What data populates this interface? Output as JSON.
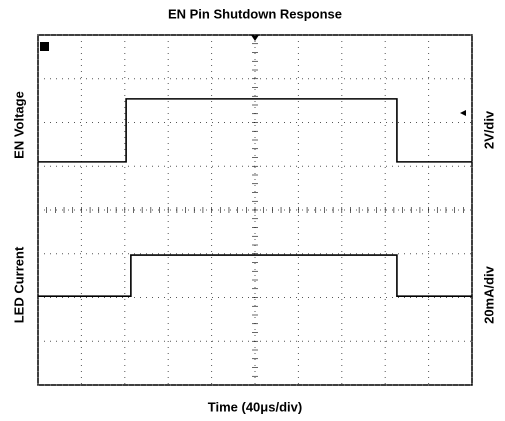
{
  "chart_data": {
    "type": "line",
    "title": "EN Pin Shutdown Response",
    "x_label": "Time (40μs/div)",
    "xlim": [
      0,
      10
    ],
    "xticks": [
      0,
      1,
      2,
      3,
      4,
      5,
      6,
      7,
      8,
      9,
      10
    ],
    "ylim": [
      0,
      8
    ],
    "yticks": [
      0,
      1,
      2,
      3,
      4,
      5,
      6,
      7,
      8
    ],
    "grid": true,
    "series": [
      {
        "name": "EN Voltage",
        "scale": "2V/div",
        "color": "#000000",
        "x": [
          0,
          2.03,
          2.03,
          8.27,
          8.27,
          10
        ],
        "values": [
          5.1,
          5.1,
          6.54,
          6.54,
          5.1,
          5.1
        ]
      },
      {
        "name": "LED Current",
        "scale": "20mA/div",
        "color": "#000000",
        "x": [
          0,
          2.14,
          2.14,
          8.27,
          8.27,
          10
        ],
        "values": [
          2.03,
          2.03,
          2.97,
          2.97,
          2.03,
          2.03
        ]
      }
    ]
  }
}
